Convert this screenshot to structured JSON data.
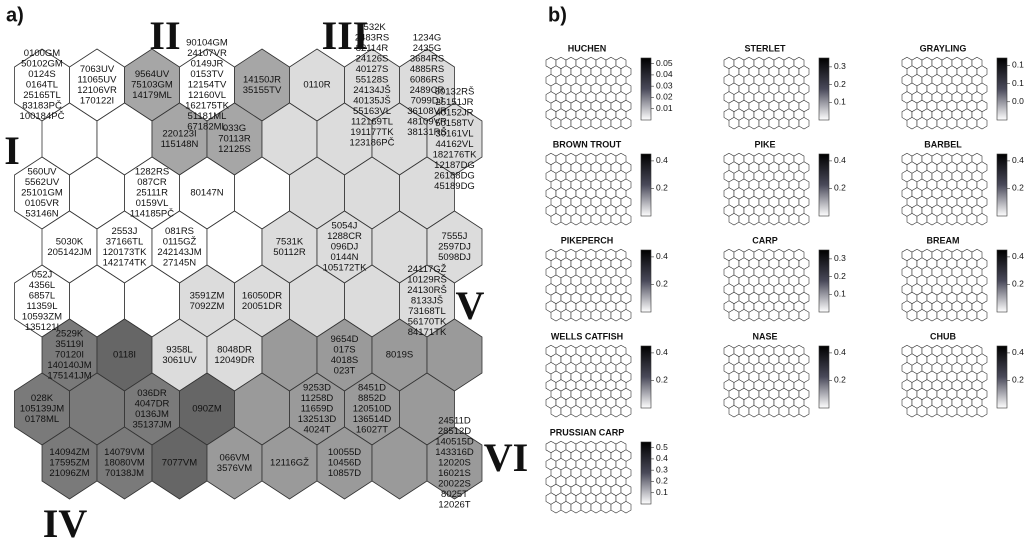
{
  "panel_a": {
    "label": "a)",
    "clusters": [
      "I",
      "II",
      "III",
      "IV",
      "V",
      "VI"
    ],
    "grid": [
      [
        {
          "fill": "#ffffff",
          "lines": [
            "0100GM",
            "50102GM",
            "0124S",
            "0164TL",
            "25165TL",
            "83183PČ",
            "100184PČ"
          ]
        },
        {
          "fill": "#ffffff",
          "lines": [
            "7063UV",
            "11065UV",
            "12106VR",
            "170122I"
          ]
        },
        {
          "fill": "#a6a6a6",
          "lines": [
            "9564UV",
            "75103GM",
            "14179ML"
          ]
        },
        {
          "fill": "#ffffff",
          "lines": [
            "90104GM",
            "24107VR",
            "0149JR",
            "0153TV",
            "12154TV",
            "12160VL",
            "162175TK",
            "51181ML",
            "67182ML"
          ]
        },
        {
          "fill": "#a6a6a6",
          "lines": [
            "14150JR",
            "35155TV"
          ]
        },
        {
          "fill": "#dcdcdc",
          "lines": [
            "0110R"
          ]
        },
        {
          "fill": "#dcdcdc",
          "lines": [
            "8532K",
            "2483RS",
            "82114R",
            "24126S",
            "40127S",
            "55128S",
            "24134JŠ",
            "40135JŠ",
            "55163VL",
            "112169TL",
            "191177TK",
            "123186PČ"
          ]
        },
        {
          "fill": "#dcdcdc",
          "lines": [
            "1234G",
            "2435G",
            "3684RS",
            "4885RS",
            "6086RS",
            "2489CR",
            "7099DJ",
            "36108VR",
            "48109VR",
            "38131RŠ"
          ]
        }
      ],
      [
        {
          "fill": "#ffffff",
          "lines": []
        },
        {
          "fill": "#ffffff",
          "lines": []
        },
        {
          "fill": "#a6a6a6",
          "lines": [
            "220123I",
            "115148N"
          ]
        },
        {
          "fill": "#a6a6a6",
          "lines": [
            "033G",
            "70113R",
            "12125S"
          ]
        },
        {
          "fill": "#dcdcdc",
          "lines": []
        },
        {
          "fill": "#dcdcdc",
          "lines": []
        },
        {
          "fill": "#dcdcdc",
          "lines": []
        },
        {
          "fill": "#dcdcdc",
          "lines": [
            "50132RŠ",
            "25151JR",
            "40152JR",
            "50158TV",
            "30161VL",
            "44162VL",
            "182176TK",
            "12187DG",
            "26188DG",
            "45189DG"
          ]
        }
      ],
      [
        {
          "fill": "#ffffff",
          "lines": [
            "560UV",
            "5562UV",
            "25101GM",
            "0105VR",
            "53146N"
          ]
        },
        {
          "fill": "#ffffff",
          "lines": []
        },
        {
          "fill": "#ffffff",
          "lines": [
            "1282RS",
            "087CR",
            "25111R",
            "0159VL",
            "114185PČ"
          ]
        },
        {
          "fill": "#ffffff",
          "lines": [
            "80147N"
          ]
        },
        {
          "fill": "#ffffff",
          "lines": []
        },
        {
          "fill": "#dcdcdc",
          "lines": []
        },
        {
          "fill": "#dcdcdc",
          "lines": []
        },
        {
          "fill": "#dcdcdc",
          "lines": []
        }
      ],
      [
        {
          "fill": "#ffffff",
          "lines": [
            "5030K",
            "205142JM"
          ]
        },
        {
          "fill": "#ffffff",
          "lines": [
            "2553J",
            "37166TL",
            "120173TK",
            "142174TK"
          ]
        },
        {
          "fill": "#ffffff",
          "lines": [
            "081RS",
            "0115GŽ",
            "242143JM",
            "27145N"
          ]
        },
        {
          "fill": "#ffffff",
          "lines": []
        },
        {
          "fill": "#dcdcdc",
          "lines": [
            "7531K",
            "50112R"
          ]
        },
        {
          "fill": "#dcdcdc",
          "lines": [
            "5054J",
            "1288CR",
            "096DJ",
            "0144N",
            "105172TK"
          ]
        },
        {
          "fill": "#dcdcdc",
          "lines": []
        },
        {
          "fill": "#dcdcdc",
          "lines": [
            "7555J",
            "2597DJ",
            "5098DJ"
          ]
        }
      ],
      [
        {
          "fill": "#ffffff",
          "lines": [
            "052J",
            "4356L",
            "6857L",
            "11359L",
            "10593ZM",
            "135121I"
          ]
        },
        {
          "fill": "#ffffff",
          "lines": []
        },
        {
          "fill": "#ffffff",
          "lines": []
        },
        {
          "fill": "#dcdcdc",
          "lines": [
            "3591ZM",
            "7092ZM"
          ]
        },
        {
          "fill": "#dcdcdc",
          "lines": [
            "16050DR",
            "20051DR"
          ]
        },
        {
          "fill": "#dcdcdc",
          "lines": []
        },
        {
          "fill": "#dcdcdc",
          "lines": []
        },
        {
          "fill": "#dcdcdc",
          "lines": [
            "24117GŽ",
            "10129RŠ",
            "24130RŠ",
            "8133JŠ",
            "73168TL",
            "56170TK",
            "84171TK"
          ]
        }
      ],
      [
        {
          "fill": "#7a7a7a",
          "lines": [
            "2529K",
            "35119I",
            "70120I",
            "140140JM",
            "175141JM"
          ]
        },
        {
          "fill": "#666666",
          "lines": [
            "0118I"
          ]
        },
        {
          "fill": "#dcdcdc",
          "lines": [
            "9358L",
            "3061UV"
          ]
        },
        {
          "fill": "#dcdcdc",
          "lines": [
            "8048DR",
            "12049DR"
          ]
        },
        {
          "fill": "#9a9a9a",
          "lines": []
        },
        {
          "fill": "#9a9a9a",
          "lines": [
            "9654D",
            "017S",
            "4018S",
            "023T"
          ]
        },
        {
          "fill": "#9a9a9a",
          "lines": [
            "8019S"
          ]
        },
        {
          "fill": "#9a9a9a",
          "lines": []
        }
      ],
      [
        {
          "fill": "#7a7a7a",
          "lines": [
            "028K",
            "105139JM",
            "0178ML"
          ]
        },
        {
          "fill": "#7a7a7a",
          "lines": []
        },
        {
          "fill": "#7a7a7a",
          "lines": [
            "036DR",
            "4047DR",
            "0136JM",
            "35137JM"
          ]
        },
        {
          "fill": "#666666",
          "lines": [
            "090ZM"
          ]
        },
        {
          "fill": "#9a9a9a",
          "lines": []
        },
        {
          "fill": "#9a9a9a",
          "lines": [
            "9253D",
            "11258D",
            "11659D",
            "132513D",
            "4024T"
          ]
        },
        {
          "fill": "#9a9a9a",
          "lines": [
            "8451D",
            "8852D",
            "120510D",
            "136514D",
            "16027T"
          ]
        },
        {
          "fill": "#9a9a9a",
          "lines": []
        }
      ],
      [
        {
          "fill": "#7a7a7a",
          "lines": [
            "14094ZM",
            "17595ZM",
            "21096ZM"
          ]
        },
        {
          "fill": "#7a7a7a",
          "lines": [
            "14079VM",
            "18080VM",
            "70138JM"
          ]
        },
        {
          "fill": "#666666",
          "lines": [
            "7077VM"
          ]
        },
        {
          "fill": "#9a9a9a",
          "lines": [
            "066VM",
            "3576VM"
          ]
        },
        {
          "fill": "#9a9a9a",
          "lines": [
            "12116GŽ"
          ]
        },
        {
          "fill": "#9a9a9a",
          "lines": [
            "10055D",
            "10456D",
            "10857D"
          ]
        },
        {
          "fill": "#9a9a9a",
          "lines": []
        },
        {
          "fill": "#9a9a9a",
          "lines": [
            "24511D",
            "28512D",
            "140515D",
            "143316D",
            "12020S",
            "16021S",
            "20022S",
            "8025T",
            "12026T"
          ]
        }
      ]
    ]
  },
  "panel_b": {
    "label": "b)",
    "maps": [
      {
        "title": "HUCHEN",
        "clim": [
          0,
          0.055
        ],
        "ticks": [
          0.05,
          0.04,
          0.03,
          0.02,
          0.01
        ]
      },
      {
        "title": "STERLET",
        "clim": [
          0,
          0.35
        ],
        "ticks": [
          0.3,
          0.2,
          0.1
        ]
      },
      {
        "title": "GRAYLING",
        "clim": [
          0,
          0.17
        ],
        "ticks": [
          0.15,
          0.1,
          0.05
        ]
      },
      {
        "title": "BROWN TROUT",
        "clim": [
          0,
          0.45
        ],
        "ticks": [
          0.4,
          0.2
        ]
      },
      {
        "title": "PIKE",
        "clim": [
          0,
          0.45
        ],
        "ticks": [
          0.4,
          0.2
        ]
      },
      {
        "title": "BARBEL",
        "clim": [
          0,
          0.45
        ],
        "ticks": [
          0.4,
          0.2
        ]
      },
      {
        "title": "PIKEPERCH",
        "clim": [
          0,
          0.45
        ],
        "ticks": [
          0.4,
          0.2
        ]
      },
      {
        "title": "CARP",
        "clim": [
          0,
          0.35
        ],
        "ticks": [
          0.3,
          0.2,
          0.1
        ]
      },
      {
        "title": "BREAM",
        "clim": [
          0,
          0.45
        ],
        "ticks": [
          0.4,
          0.2
        ]
      },
      {
        "title": "WELLS CATFISH",
        "clim": [
          0,
          0.45
        ],
        "ticks": [
          0.4,
          0.2
        ]
      },
      {
        "title": "NASE",
        "clim": [
          0,
          0.45
        ],
        "ticks": [
          0.4,
          0.2
        ]
      },
      {
        "title": "CHUB",
        "clim": [
          0,
          0.45
        ],
        "ticks": [
          0.4,
          0.2
        ]
      },
      {
        "title": "PRUSSIAN CARP",
        "clim": [
          0,
          0.55
        ],
        "ticks": [
          0.5,
          0.4,
          0.3,
          0.2,
          0.1
        ]
      }
    ]
  }
}
